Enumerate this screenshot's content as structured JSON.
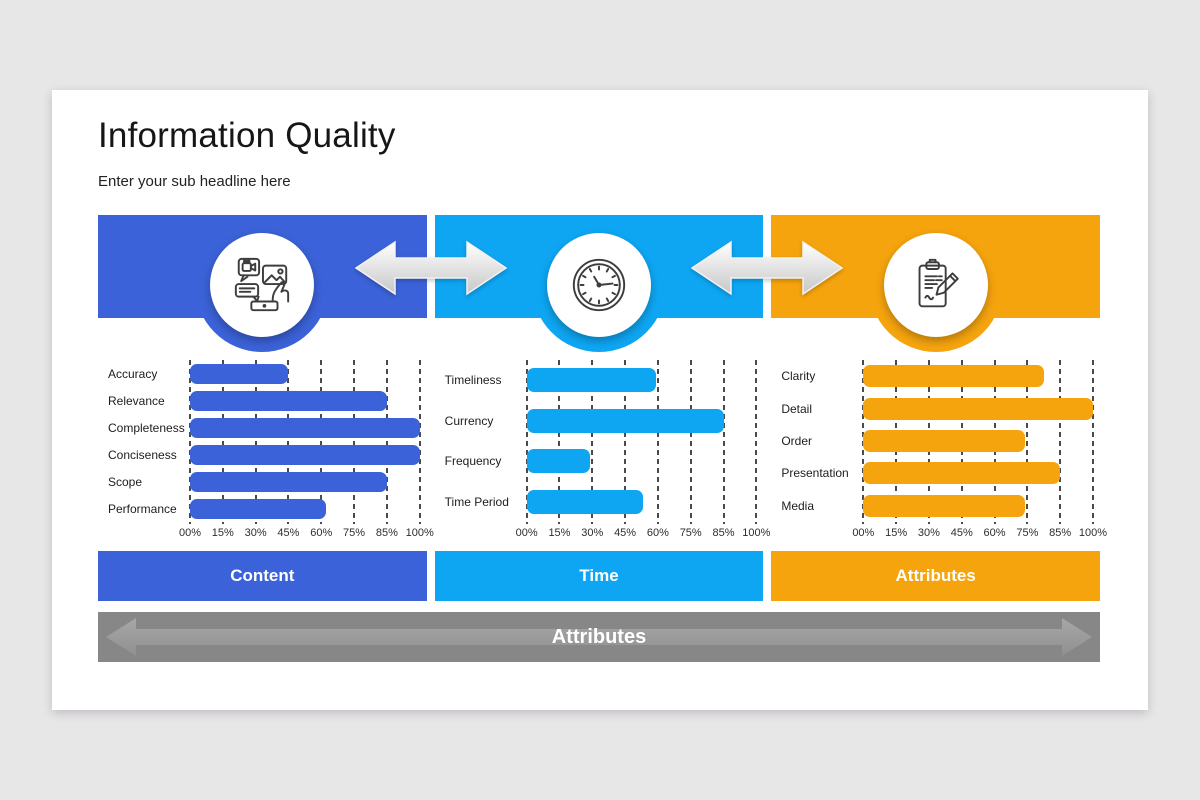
{
  "header": {
    "title": "Information Quality",
    "subtitle": "Enter your sub headline here"
  },
  "colors": {
    "background": "#E8E7E8",
    "card": "#FFFFFF",
    "content_blue": "#3B62D8",
    "time_cyan": "#0EA6F3",
    "attributes_orange": "#F6A40E",
    "gray_band": "#878787",
    "gray_arrow": "#9D9D9D",
    "gridline": "#4A4A4A"
  },
  "axis": {
    "tick_labels": [
      "00%",
      "15%",
      "30%",
      "45%",
      "60%",
      "75%",
      "85%",
      "100%"
    ],
    "tick_values": [
      0,
      15,
      30,
      45,
      60,
      75,
      85,
      100
    ]
  },
  "sections": [
    {
      "label": "Content",
      "color": "#3B62D8",
      "icon": "media-content-icon"
    },
    {
      "label": "Time",
      "color": "#0EA6F3",
      "icon": "clock-icon"
    },
    {
      "label": "Attributes",
      "color": "#F6A40E",
      "icon": "clipboard-pencil-icon"
    }
  ],
  "chart_data": [
    {
      "type": "bar",
      "orientation": "horizontal",
      "title": "Content",
      "categories": [
        "Accuracy",
        "Relevance",
        "Completeness",
        "Conciseness",
        "Scope",
        "Performance"
      ],
      "values": [
        45,
        85,
        100,
        100,
        85,
        62
      ],
      "xtick_labels": [
        "00%",
        "15%",
        "30%",
        "45%",
        "60%",
        "75%",
        "85%",
        "100%"
      ],
      "xlim": [
        0,
        100
      ],
      "grid": "dashed-vertical",
      "color": "#3B62D8"
    },
    {
      "type": "bar",
      "orientation": "horizontal",
      "title": "Time",
      "categories": [
        "Timeliness",
        "Currency",
        "Frequency",
        "Time Period"
      ],
      "values": [
        59,
        85,
        29,
        53
      ],
      "xtick_labels": [
        "00%",
        "15%",
        "30%",
        "45%",
        "60%",
        "75%",
        "85%",
        "100%"
      ],
      "xlim": [
        0,
        100
      ],
      "grid": "dashed-vertical",
      "color": "#0EA6F3"
    },
    {
      "type": "bar",
      "orientation": "horizontal",
      "title": "Attributes",
      "categories": [
        "Clarity",
        "Detail",
        "Order",
        "Presentation",
        "Media"
      ],
      "values": [
        80,
        100,
        74,
        85,
        74
      ],
      "xtick_labels": [
        "00%",
        "15%",
        "30%",
        "45%",
        "60%",
        "75%",
        "85%",
        "100%"
      ],
      "xlim": [
        0,
        100
      ],
      "grid": "dashed-vertical",
      "color": "#F6A40E"
    }
  ],
  "bottom_bar": {
    "label": "Attributes"
  }
}
